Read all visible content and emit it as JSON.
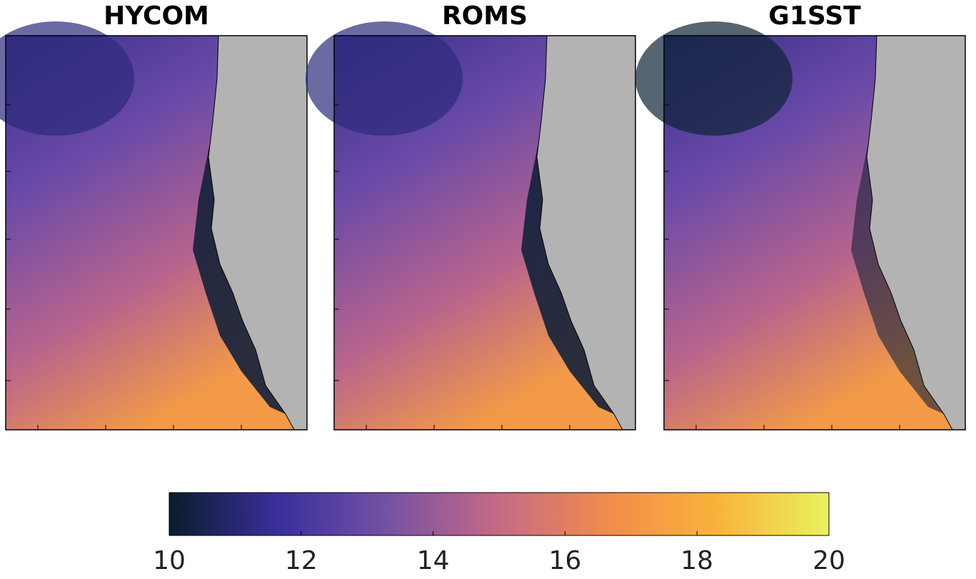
{
  "panels": [
    {
      "title": "HYCOM"
    },
    {
      "title": "ROMS"
    },
    {
      "title": "G1SST"
    }
  ],
  "colorbar": {
    "lim": [
      10,
      20
    ],
    "ticks": [
      10,
      12,
      14,
      16,
      18,
      20
    ],
    "colors": [
      "#0b1c2c",
      "#3a2f9e",
      "#7652a2",
      "#c56a86",
      "#f28c4c",
      "#f9b43a",
      "#e8f35e"
    ]
  }
}
